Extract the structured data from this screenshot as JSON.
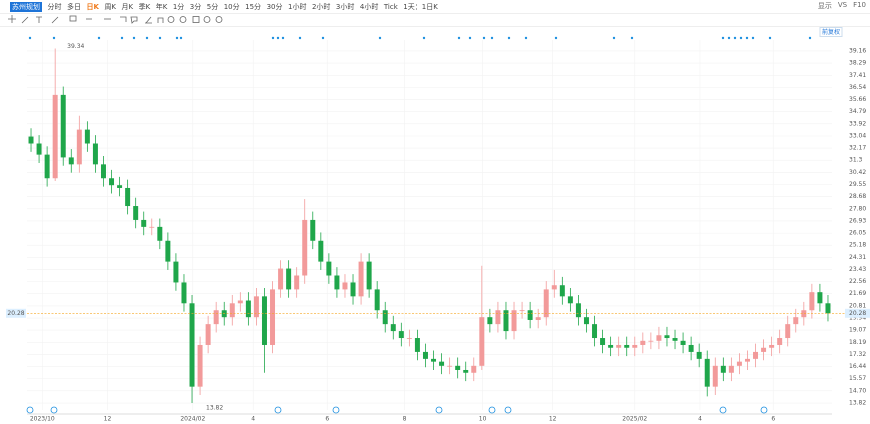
{
  "toolbar": {
    "stock": "苏州规划",
    "tabs": [
      "分时",
      "多日",
      "日K",
      "周K",
      "月K",
      "季K",
      "年K",
      "1分",
      "3分",
      "5分",
      "10分",
      "15分",
      "30分",
      "1小时",
      "2小时",
      "3小时",
      "4小时",
      "Tick",
      "1天：1日K"
    ],
    "right": [
      "显示",
      "VS",
      "F10"
    ],
    "adjust": "前复权"
  },
  "chart_data": {
    "type": "candlestick",
    "open": [
      33.0,
      32.5,
      31.7,
      30.0,
      36.0,
      31.5,
      31.0,
      33.5,
      32.5,
      31.0,
      30.0,
      29.5,
      29.3,
      28.0,
      27.0,
      26.5,
      26.5,
      25.5,
      24.0,
      22.5,
      21.0,
      15.0,
      18.0,
      19.5,
      20.5,
      20.0,
      21.0,
      21.2,
      20.0,
      21.5,
      18.0,
      22.0,
      23.5,
      22.0,
      23.0,
      27.0,
      25.5,
      24.0,
      23.0,
      22.0,
      22.5,
      21.5,
      24.0,
      22.0,
      20.5,
      19.5,
      19.0,
      18.5,
      18.5,
      17.5,
      17.0,
      16.8,
      16.5,
      16.5,
      16.2,
      16.0,
      16.5,
      20.0,
      19.5,
      20.5,
      19.0,
      20.5,
      20.5,
      19.8,
      20.0,
      22.0,
      22.3,
      21.5,
      21.0,
      20.0,
      19.5,
      18.5,
      18.0,
      17.8,
      18.0,
      17.8,
      18.0,
      18.3,
      18.3,
      18.7,
      18.5,
      18.3,
      18.0,
      17.5,
      17.0,
      15.0,
      16.5,
      16.0,
      16.5,
      16.8,
      17.0,
      17.5,
      17.8,
      18.0,
      18.5,
      19.5,
      20.0,
      20.5,
      21.8,
      21.0
    ],
    "high": [
      33.6,
      33.1,
      32.3,
      39.34,
      36.6,
      32.1,
      34.5,
      34.1,
      33.1,
      31.6,
      30.6,
      30.1,
      29.9,
      28.6,
      27.6,
      27.1,
      27.1,
      26.1,
      24.6,
      23.1,
      21.6,
      18.6,
      20.1,
      21.1,
      21.1,
      21.6,
      21.8,
      21.8,
      22.1,
      22.1,
      22.6,
      24.1,
      24.1,
      23.6,
      28.5,
      27.6,
      26.1,
      24.6,
      23.6,
      23.1,
      23.1,
      24.6,
      24.6,
      22.6,
      21.1,
      20.1,
      19.6,
      19.1,
      19.1,
      18.1,
      17.6,
      17.4,
      17.1,
      17.1,
      16.8,
      17.1,
      23.7,
      20.6,
      21.1,
      21.1,
      21.1,
      21.1,
      21.1,
      20.6,
      22.6,
      23.4,
      22.9,
      22.1,
      21.6,
      20.6,
      20.1,
      19.1,
      18.6,
      18.6,
      18.6,
      18.6,
      18.9,
      18.9,
      19.3,
      19.3,
      19.1,
      18.9,
      18.6,
      18.1,
      17.6,
      17.1,
      17.1,
      17.1,
      17.4,
      17.6,
      18.1,
      18.4,
      18.6,
      19.1,
      20.1,
      20.6,
      21.1,
      22.4,
      22.4,
      21.6
    ],
    "low": [
      31.9,
      31.1,
      29.4,
      29.8,
      30.9,
      30.4,
      30.4,
      31.9,
      30.4,
      29.4,
      28.9,
      28.7,
      27.4,
      26.4,
      25.9,
      25.9,
      24.9,
      23.4,
      21.9,
      20.4,
      13.82,
      14.4,
      17.4,
      18.9,
      19.4,
      19.4,
      20.4,
      19.4,
      19.4,
      16.0,
      17.4,
      21.4,
      21.4,
      21.4,
      22.4,
      24.9,
      23.4,
      22.4,
      21.4,
      21.4,
      20.9,
      20.9,
      21.4,
      19.9,
      18.9,
      18.4,
      17.9,
      17.9,
      16.9,
      16.4,
      16.2,
      15.9,
      15.9,
      15.6,
      15.4,
      15.4,
      16.2,
      18.9,
      18.9,
      18.4,
      18.4,
      19.9,
      19.2,
      19.2,
      19.4,
      21.4,
      20.9,
      20.4,
      19.4,
      18.9,
      17.9,
      17.4,
      17.2,
      17.2,
      17.2,
      17.2,
      17.4,
      17.7,
      17.7,
      17.9,
      17.7,
      17.4,
      16.9,
      16.4,
      14.3,
      14.4,
      15.4,
      15.4,
      15.9,
      16.2,
      16.4,
      16.9,
      17.2,
      17.4,
      17.9,
      18.9,
      19.4,
      19.9,
      20.4,
      19.7
    ],
    "close": [
      32.5,
      31.7,
      30.0,
      36.0,
      31.5,
      31.0,
      33.5,
      32.5,
      31.0,
      30.0,
      29.5,
      29.3,
      28.0,
      27.0,
      26.5,
      26.5,
      25.5,
      24.0,
      22.5,
      21.0,
      15.0,
      18.0,
      19.5,
      20.5,
      20.0,
      21.0,
      21.2,
      20.0,
      21.5,
      18.0,
      22.0,
      23.5,
      22.0,
      23.0,
      27.0,
      25.5,
      24.0,
      23.0,
      22.0,
      22.5,
      21.5,
      24.0,
      22.0,
      20.5,
      19.5,
      19.0,
      18.5,
      18.5,
      17.5,
      17.0,
      16.8,
      16.5,
      16.5,
      16.2,
      16.0,
      16.5,
      20.0,
      19.5,
      20.5,
      19.0,
      20.5,
      20.5,
      19.8,
      20.0,
      22.0,
      22.3,
      21.5,
      21.0,
      20.0,
      19.5,
      18.5,
      18.0,
      17.8,
      18.0,
      17.8,
      18.0,
      18.3,
      18.3,
      18.7,
      18.5,
      18.3,
      18.0,
      17.5,
      17.0,
      15.0,
      16.5,
      16.0,
      16.5,
      16.8,
      17.0,
      17.5,
      17.8,
      18.0,
      18.5,
      19.5,
      20.0,
      20.5,
      21.8,
      21.0,
      20.28
    ],
    "up_color": "#f29a9a",
    "down_color": "#1fa64a",
    "last_color": "#f5a623",
    "xlim": [
      -0.5,
      99.5
    ],
    "xticks": [
      {
        "value": 1.4,
        "label": "2023/10"
      },
      {
        "value": 9.5,
        "label": "12"
      },
      {
        "value": 20.1,
        "label": "2024/02"
      },
      {
        "value": 27.6,
        "label": "4"
      },
      {
        "value": 36.8,
        "label": "6"
      },
      {
        "value": 46.4,
        "label": "8"
      },
      {
        "value": 56.1,
        "label": "10"
      },
      {
        "value": 64.8,
        "label": "12"
      },
      {
        "value": 75,
        "label": "2025/02"
      },
      {
        "value": 83.1,
        "label": "4"
      },
      {
        "value": 92.2,
        "label": "6"
      }
    ],
    "ylim": [
      13.32,
      39.95
    ],
    "yticks": [
      13.82,
      {
        "value": 14.7,
        "label": "14.70"
      },
      15.57,
      16.44,
      17.32,
      18.19,
      19.07,
      19.94,
      20.81,
      21.69,
      22.56,
      23.43,
      24.31,
      25.18,
      26.05,
      26.93,
      {
        "value": 27.8,
        "label": "27.80"
      },
      28.68,
      29.55,
      30.42,
      31.3,
      32.17,
      33.04,
      33.92,
      34.79,
      35.66,
      36.54,
      37.41,
      38.29,
      39.16
    ],
    "grid": true
  }
}
